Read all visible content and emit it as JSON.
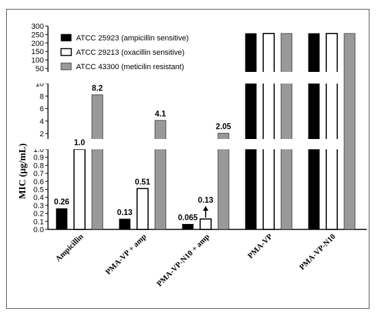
{
  "chart_data": {
    "type": "bar",
    "title": "",
    "ylabel": "MIC (µg/mL)",
    "xlabel": "",
    "categories": [
      "Ampicillin",
      "PMA-VP + amp",
      "PMA-VP-N10 + amp",
      "PMA-VP",
      "PMA-VP-N10"
    ],
    "series": [
      {
        "name": "ATCC 25923 (ampicillin sensitive)",
        "color": "#000000",
        "values": [
          0.26,
          0.13,
          0.065,
          256,
          256
        ]
      },
      {
        "name": "ATCC 29213 (oxacillin sensitive)",
        "color": "#ffffff",
        "values": [
          1.0,
          0.51,
          0.13,
          256,
          256
        ]
      },
      {
        "name": "ATCC 43300 (meticilin resistant)",
        "color": "#999999",
        "values": [
          8.2,
          4.1,
          2.05,
          256,
          256
        ]
      }
    ],
    "data_labels": [
      {
        "category": 0,
        "series": 0,
        "text": "0.26"
      },
      {
        "category": 0,
        "series": 1,
        "text": "1.0"
      },
      {
        "category": 0,
        "series": 2,
        "text": "8.2"
      },
      {
        "category": 1,
        "series": 0,
        "text": "0.13"
      },
      {
        "category": 1,
        "series": 1,
        "text": "0.51"
      },
      {
        "category": 1,
        "series": 2,
        "text": "4.1"
      },
      {
        "category": 2,
        "series": 0,
        "text": "0.065"
      },
      {
        "category": 2,
        "series": 1,
        "text": "0.13"
      },
      {
        "category": 2,
        "series": 2,
        "text": "2.05"
      }
    ],
    "annotations": [
      {
        "type": "arrow-up",
        "category": 2,
        "series": 1
      }
    ],
    "y_axis_segments": [
      {
        "range": [
          0,
          1.0
        ],
        "ticks": [
          "0.0",
          "0.1",
          "0.2",
          "0.3",
          "0.4",
          "0.5",
          "0.6",
          "0.7",
          "0.8",
          "0.9",
          "1.0"
        ]
      },
      {
        "range": [
          1,
          10
        ],
        "ticks": [
          "2",
          "4",
          "6",
          "8",
          "10"
        ]
      },
      {
        "range": [
          50,
          300
        ],
        "ticks": [
          "50",
          "100",
          "150",
          "200",
          "250",
          "300"
        ]
      }
    ],
    "legend_position": "top-left",
    "grid": false
  }
}
